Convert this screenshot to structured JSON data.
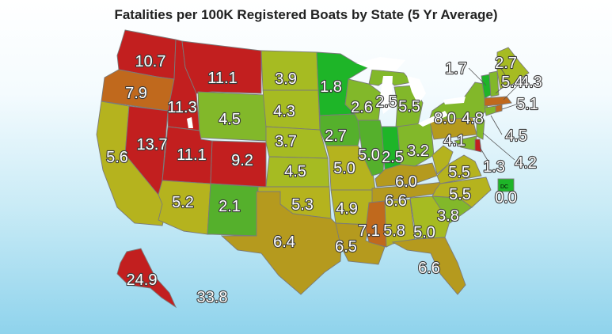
{
  "title": "Fatalities per 100K Registered Boats by State (5 Yr Average)",
  "colors": {
    "red": "#c21f1f",
    "orange": "#c0691d",
    "gold": "#b59a1e",
    "olive": "#b5b31e",
    "yellowgreen": "#a6bb22",
    "lightgreen": "#82b82a",
    "green": "#55b02c",
    "brightgreen": "#1eb528",
    "lake": "#ffffff"
  },
  "map_data": {
    "type": "choropleth",
    "metric": "Fatalities per 100K Registered Boats (5 Yr Average)",
    "values": [
      {
        "label": "10.7",
        "state": "WA"
      },
      {
        "label": "7.9",
        "state": "OR"
      },
      {
        "label": "5.6",
        "state": "CA"
      },
      {
        "label": "13.7",
        "state": "NV"
      },
      {
        "label": "11.3",
        "state": "ID"
      },
      {
        "label": "11.1",
        "state": "MT"
      },
      {
        "label": "4.5",
        "state": "WY"
      },
      {
        "label": "11.1",
        "state": "UT"
      },
      {
        "label": "9.2",
        "state": "CO"
      },
      {
        "label": "5.2",
        "state": "AZ"
      },
      {
        "label": "2.1",
        "state": "NM"
      },
      {
        "label": "3.9",
        "state": "ND"
      },
      {
        "label": "4.3",
        "state": "SD"
      },
      {
        "label": "3.7",
        "state": "NE"
      },
      {
        "label": "4.5",
        "state": "KS"
      },
      {
        "label": "5.3",
        "state": "OK"
      },
      {
        "label": "6.4",
        "state": "TX"
      },
      {
        "label": "1.8",
        "state": "MN"
      },
      {
        "label": "2.7",
        "state": "IA"
      },
      {
        "label": "5.0",
        "state": "MO"
      },
      {
        "label": "4.9",
        "state": "AR"
      },
      {
        "label": "6.5",
        "state": "LA"
      },
      {
        "label": "2.6",
        "state": "WI"
      },
      {
        "label": "2.5",
        "state": "MI"
      },
      {
        "label": "5.0",
        "state": "IL"
      },
      {
        "label": "2.5",
        "state": "IN"
      },
      {
        "label": "5.5",
        "state": "OH"
      },
      {
        "label": "6.0",
        "state": "KY"
      },
      {
        "label": "6.6",
        "state": "TN"
      },
      {
        "label": "7.1",
        "state": "MS"
      },
      {
        "label": "5.8",
        "state": "AL"
      },
      {
        "label": "5.0",
        "state": "GA"
      },
      {
        "label": "6.6",
        "state": "FL"
      },
      {
        "label": "3.8",
        "state": "SC"
      },
      {
        "label": "5.5",
        "state": "NC"
      },
      {
        "label": "5.5",
        "state": "VA"
      },
      {
        "label": "3.2",
        "state": "WV"
      },
      {
        "label": "8.0",
        "state": "PA"
      },
      {
        "label": "4.8",
        "state": "NY"
      },
      {
        "label": "4.1",
        "state": "MD"
      },
      {
        "label": "1.3",
        "state": "DE"
      },
      {
        "label": "4.2",
        "state": "NJ"
      },
      {
        "label": "4.5",
        "state": "CT"
      },
      {
        "label": "5.1",
        "state": "RI"
      },
      {
        "label": "4.3",
        "state": "MA"
      },
      {
        "label": "5.4",
        "state": "NH"
      },
      {
        "label": "1.7",
        "state": "VT"
      },
      {
        "label": "2.7",
        "state": "ME"
      },
      {
        "label": "0.0",
        "state": "DC"
      },
      {
        "label": "24.9",
        "state": "AK"
      },
      {
        "label": "33.8",
        "state": "HI"
      }
    ],
    "dc_tag": "DC"
  }
}
